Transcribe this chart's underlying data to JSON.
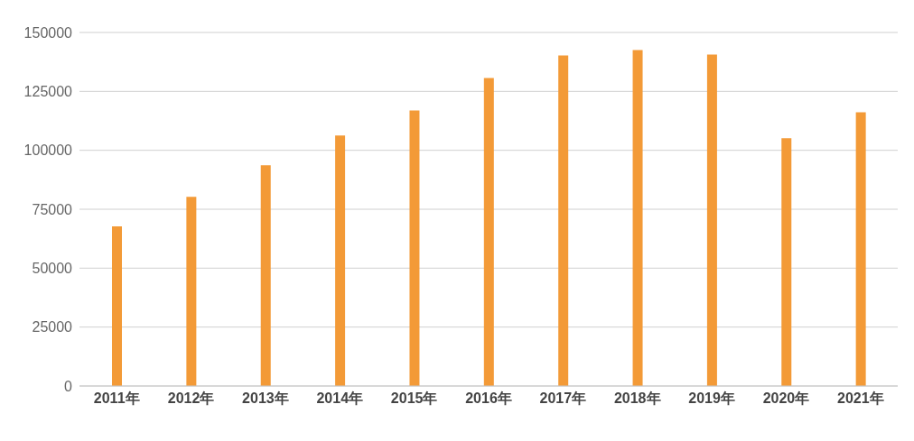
{
  "chart_data": {
    "type": "bar",
    "categories": [
      "2011年",
      "2012年",
      "2013年",
      "2014年",
      "2015年",
      "2016年",
      "2017年",
      "2018年",
      "2019年",
      "2020年",
      "2021年"
    ],
    "values": [
      67700,
      80300,
      93700,
      106300,
      116900,
      130700,
      140200,
      142500,
      140600,
      105100,
      116100
    ],
    "color": "#f39a37",
    "ylim": [
      0,
      150000
    ],
    "yticks": [
      0,
      25000,
      50000,
      75000,
      100000,
      125000,
      150000
    ],
    "grid": "y"
  }
}
